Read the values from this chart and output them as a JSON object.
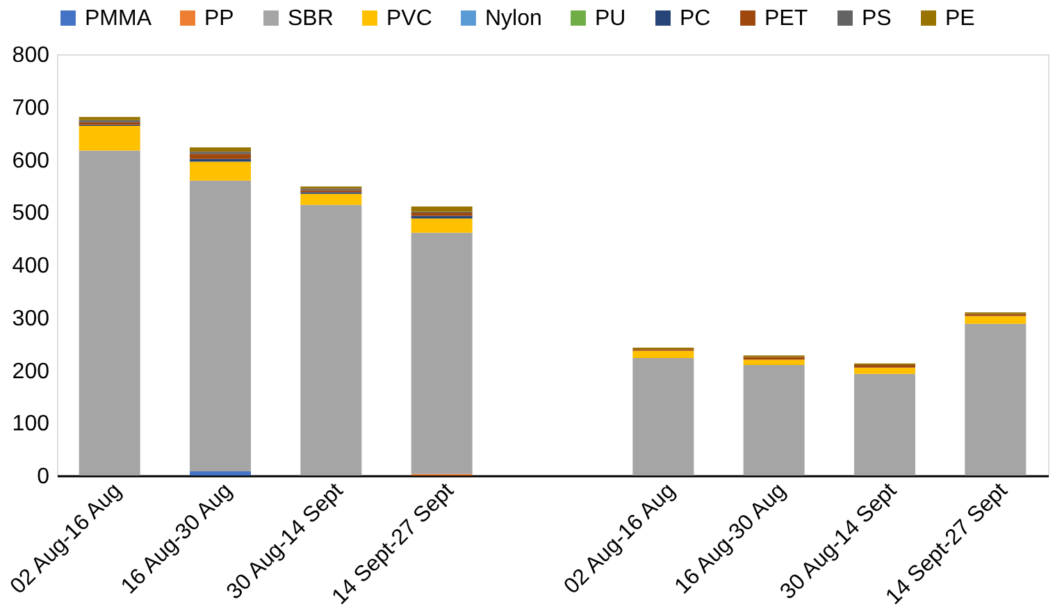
{
  "chart_data": {
    "type": "bar",
    "stacked": true,
    "categories": [
      "02 Aug-16 Aug",
      "16 Aug-30 Aug",
      "30 Aug-14 Sept",
      "14 Sept-27 Sept",
      null,
      "02 Aug-16 Aug",
      "16 Aug-30 Aug",
      "30 Aug-14 Sept",
      "14 Sept-27 Sept"
    ],
    "series": [
      {
        "name": "PMMA",
        "color": "#4472c4",
        "values": [
          0,
          8,
          0,
          0,
          null,
          0,
          0,
          0,
          0
        ]
      },
      {
        "name": "PP",
        "color": "#ed7d31",
        "values": [
          0,
          0,
          0,
          3,
          null,
          0,
          0,
          0,
          0
        ]
      },
      {
        "name": "SBR",
        "color": "#a5a5a5",
        "values": [
          617,
          552,
          514,
          458,
          null,
          223,
          210,
          193,
          288
        ]
      },
      {
        "name": "PVC",
        "color": "#ffc000",
        "values": [
          47,
          36,
          21,
          27,
          null,
          14,
          10,
          12,
          15
        ]
      },
      {
        "name": "Nylon",
        "color": "#5b9bd5",
        "values": [
          0,
          0,
          0,
          0,
          null,
          0,
          0,
          0,
          0
        ]
      },
      {
        "name": "PU",
        "color": "#70ad47",
        "values": [
          0,
          0,
          0,
          0,
          null,
          0,
          0,
          0,
          0
        ]
      },
      {
        "name": "PC",
        "color": "#264478",
        "values": [
          2,
          5,
          3,
          5,
          null,
          0,
          0,
          0,
          0
        ]
      },
      {
        "name": "PET",
        "color": "#9e480e",
        "values": [
          5,
          10,
          4,
          6,
          null,
          3,
          5,
          5,
          4
        ]
      },
      {
        "name": "PS",
        "color": "#636363",
        "values": [
          4,
          4,
          3,
          2,
          null,
          0,
          0,
          0,
          0
        ]
      },
      {
        "name": "PE",
        "color": "#997300",
        "values": [
          6,
          8,
          4,
          10,
          null,
          3,
          3,
          3,
          3
        ]
      }
    ],
    "ylim": [
      0,
      800
    ],
    "yticks": [
      0,
      100,
      200,
      300,
      400,
      500,
      600,
      700,
      800
    ],
    "grid": false,
    "legend": "top"
  }
}
